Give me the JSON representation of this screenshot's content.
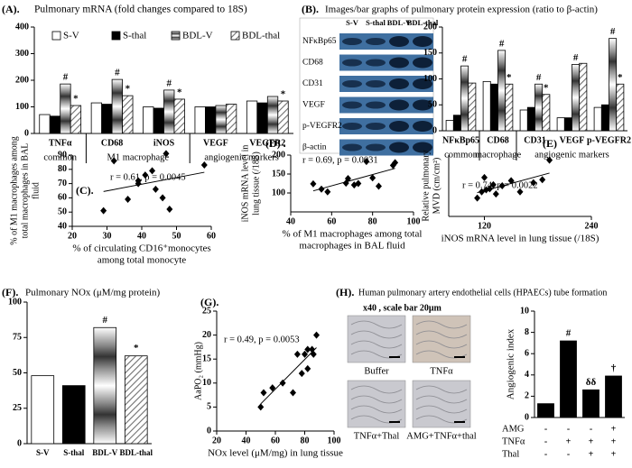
{
  "chart_data": [
    {
      "type": "bar",
      "panel": "(A).",
      "title": "Pulmonary mRNA (fold changes compared to 18S)",
      "categories": [
        "TNFα",
        "CD68",
        "iNOS",
        "VEGF",
        "VEGFR2"
      ],
      "groups": [
        {
          "label": "common",
          "span": 1
        },
        {
          "label": "M1 macrophage",
          "span": 2
        },
        {
          "label": "angiogenic markers",
          "span": 2
        }
      ],
      "series": [
        {
          "name": "S-V",
          "color": "#ffffff",
          "pattern": "solid",
          "values": [
            71,
            115,
            100,
            100,
            122
          ]
        },
        {
          "name": "S-thal",
          "color": "#000000",
          "pattern": "solid",
          "values": [
            65,
            110,
            95,
            100,
            115
          ]
        },
        {
          "name": "BDL-V",
          "color": "#8c8c8c",
          "pattern": "gradient",
          "values": [
            186,
            203,
            163,
            105,
            139
          ],
          "annotations": [
            "#",
            "#",
            "#",
            null,
            null
          ]
        },
        {
          "name": "BDL-thal",
          "color": "#707070",
          "pattern": "hatch",
          "values": [
            105,
            142,
            129,
            110,
            122
          ],
          "annotations": [
            "*",
            "*",
            "*",
            null,
            "*"
          ]
        }
      ],
      "ylim": [
        0,
        400
      ],
      "yticks": [
        0,
        100,
        200,
        300,
        400
      ],
      "legend": "top"
    },
    {
      "type": "bar",
      "panel": "(B).",
      "title": "Images/bar graphs of pulmonary protein  expression (ratio to β-actin)",
      "blot_rows": [
        "NFκBp65",
        "CD68",
        "CD31",
        "VEGF",
        "p-VEGFR2",
        "β-actin"
      ],
      "categories": [
        "NFκBp65",
        "CD68",
        "CD31",
        "VEGF",
        "p-VEGFR2"
      ],
      "groups": [
        {
          "label": "common",
          "span": 1
        },
        {
          "label": "macrophage",
          "span": 1
        },
        {
          "label": "angiogenic markers",
          "span": 3
        }
      ],
      "series": [
        {
          "name": "S-V",
          "color": "#ffffff",
          "pattern": "solid",
          "values": [
            20,
            95,
            40,
            25,
            45
          ]
        },
        {
          "name": "S-thal",
          "color": "#000000",
          "pattern": "solid",
          "values": [
            30,
            90,
            45,
            25,
            50
          ]
        },
        {
          "name": "BDL-V",
          "color": "#8c8c8c",
          "pattern": "gradient",
          "values": [
            125,
            155,
            90,
            128,
            178
          ],
          "annotations": [
            "#",
            "#",
            "#",
            "#",
            "#"
          ]
        },
        {
          "name": "BDL-thal",
          "color": "#707070",
          "pattern": "hatch",
          "values": [
            92,
            90,
            70,
            130,
            90
          ],
          "annotations": [
            null,
            "*",
            "*",
            null,
            "*"
          ]
        }
      ],
      "ylim": [
        0,
        200
      ],
      "yticks": [
        0,
        50,
        100,
        150,
        200
      ]
    },
    {
      "type": "scatter",
      "panel": "(C).",
      "annotation": "r = 0.61, p = 0.0045",
      "xlabel": [
        "% of circulating CD16⁺monocytes",
        "among total monocyte"
      ],
      "ylabel": [
        "% of M1 macrophages among",
        "total macrophages in BAL",
        "fluid"
      ],
      "x": [
        29,
        32,
        36,
        39,
        39,
        41,
        43,
        44,
        46,
        47,
        48,
        58
      ],
      "y": [
        51,
        86,
        59,
        72,
        70,
        76,
        79,
        66,
        60,
        91,
        52,
        83
      ],
      "xlim": [
        20,
        60
      ],
      "xticks": [
        20,
        30,
        40,
        50,
        60
      ],
      "ylim": [
        40,
        90
      ],
      "yticks": [
        40,
        50,
        60,
        70,
        80,
        90
      ],
      "color": "#000000"
    },
    {
      "type": "scatter",
      "panel": "(D) .",
      "annotation": "r = 0.69, p = 0.0031",
      "xlabel": [
        "%  of M1 macrophages among total",
        "macrophages in BAL fluid"
      ],
      "ylabel": [
        "iNOS mRNA level in",
        "lung tissue (/18S)"
      ],
      "x": [
        51,
        55,
        58,
        67,
        68,
        71,
        73,
        77,
        80,
        83,
        90,
        91
      ],
      "y": [
        124,
        110,
        103,
        126,
        138,
        121,
        125,
        183,
        140,
        118,
        173,
        180
      ],
      "xlim": [
        40,
        100
      ],
      "xticks": [
        40,
        60,
        80,
        100
      ],
      "ylim": [
        50,
        200
      ],
      "yticks": [
        100,
        150,
        200
      ],
      "color": "#000000"
    },
    {
      "type": "scatter",
      "panel": "(E)",
      "annotation": "r = 0.74, p = 0.0022",
      "xlabel": [
        "iNOS mRNA level in lung tissue (/18S)"
      ],
      "ylabel": [
        "Relative pulmonary",
        "MVD  (cm/cm²)"
      ],
      "x": [
        112,
        117,
        120,
        122,
        126,
        130,
        133,
        140,
        150,
        160,
        175,
        185,
        193
      ],
      "y": [
        18,
        24,
        38,
        26,
        27,
        31,
        22,
        30,
        35,
        24,
        33,
        36,
        55
      ],
      "xlim": [
        80,
        240
      ],
      "xticks": [
        120,
        240
      ],
      "ylim": [
        0,
        60
      ],
      "color": "#000000"
    },
    {
      "type": "bar",
      "panel": "(F).",
      "title": "Pulmonary NOx (μM/mg protein)",
      "categories": [
        "S-V",
        "S-thal",
        "BDL-V",
        "BDL-thal"
      ],
      "values": [
        48,
        41,
        82,
        62
      ],
      "colors": [
        "#ffffff",
        "#000000",
        "#8c8c8c",
        "#707070"
      ],
      "patterns": [
        "solid",
        "solid",
        "gradient",
        "hatch"
      ],
      "annotations": [
        null,
        null,
        "#",
        "*"
      ],
      "ylim": [
        0,
        100
      ],
      "yticks": [
        0,
        25,
        50,
        75,
        100
      ]
    },
    {
      "type": "scatter",
      "panel": "(G).",
      "annotation": "r = 0.49, p = 0.0053",
      "xlabel": [
        "NOx level (μM/mg) in lung tissue"
      ],
      "ylabel": [
        "AaPO₂ (mmHg)"
      ],
      "x": [
        50,
        52,
        58,
        65,
        72,
        75,
        78,
        80,
        82,
        82,
        85,
        86,
        88
      ],
      "y": [
        5,
        8,
        9,
        10,
        8,
        16,
        12,
        16,
        17,
        13,
        17,
        16,
        20
      ],
      "xlim": [
        20,
        100
      ],
      "xticks": [
        20,
        40,
        60,
        80,
        100
      ],
      "ylim": [
        0,
        25
      ],
      "yticks": [
        0,
        5,
        10,
        15,
        20,
        25
      ],
      "color": "#000000"
    },
    {
      "type": "bar",
      "panel": "(H).",
      "title": "Human pulmonary artery endothelial cells (HPAECs) tube formation",
      "image_note": "x40 , scale bar  20μm",
      "images": [
        "Buffer",
        "TNFα",
        "TNFα+Thal",
        "AMG+TNFα+thal"
      ],
      "ylabel": [
        "Angiogenic index"
      ],
      "values": [
        1.3,
        7.2,
        2.6,
        3.9
      ],
      "color": "#000000",
      "annotations": [
        null,
        "#",
        "δδ",
        "†"
      ],
      "treatments": [
        {
          "name": "AMG",
          "signs": [
            "-",
            "-",
            "-",
            "+"
          ]
        },
        {
          "name": "TNFα",
          "signs": [
            "-",
            "+",
            "+",
            "+"
          ]
        },
        {
          "name": "Thal",
          "signs": [
            "-",
            "-",
            "+",
            "+"
          ]
        }
      ],
      "ylim": [
        0,
        10
      ],
      "yticks": [
        0,
        2,
        4,
        6,
        8,
        10
      ]
    }
  ]
}
